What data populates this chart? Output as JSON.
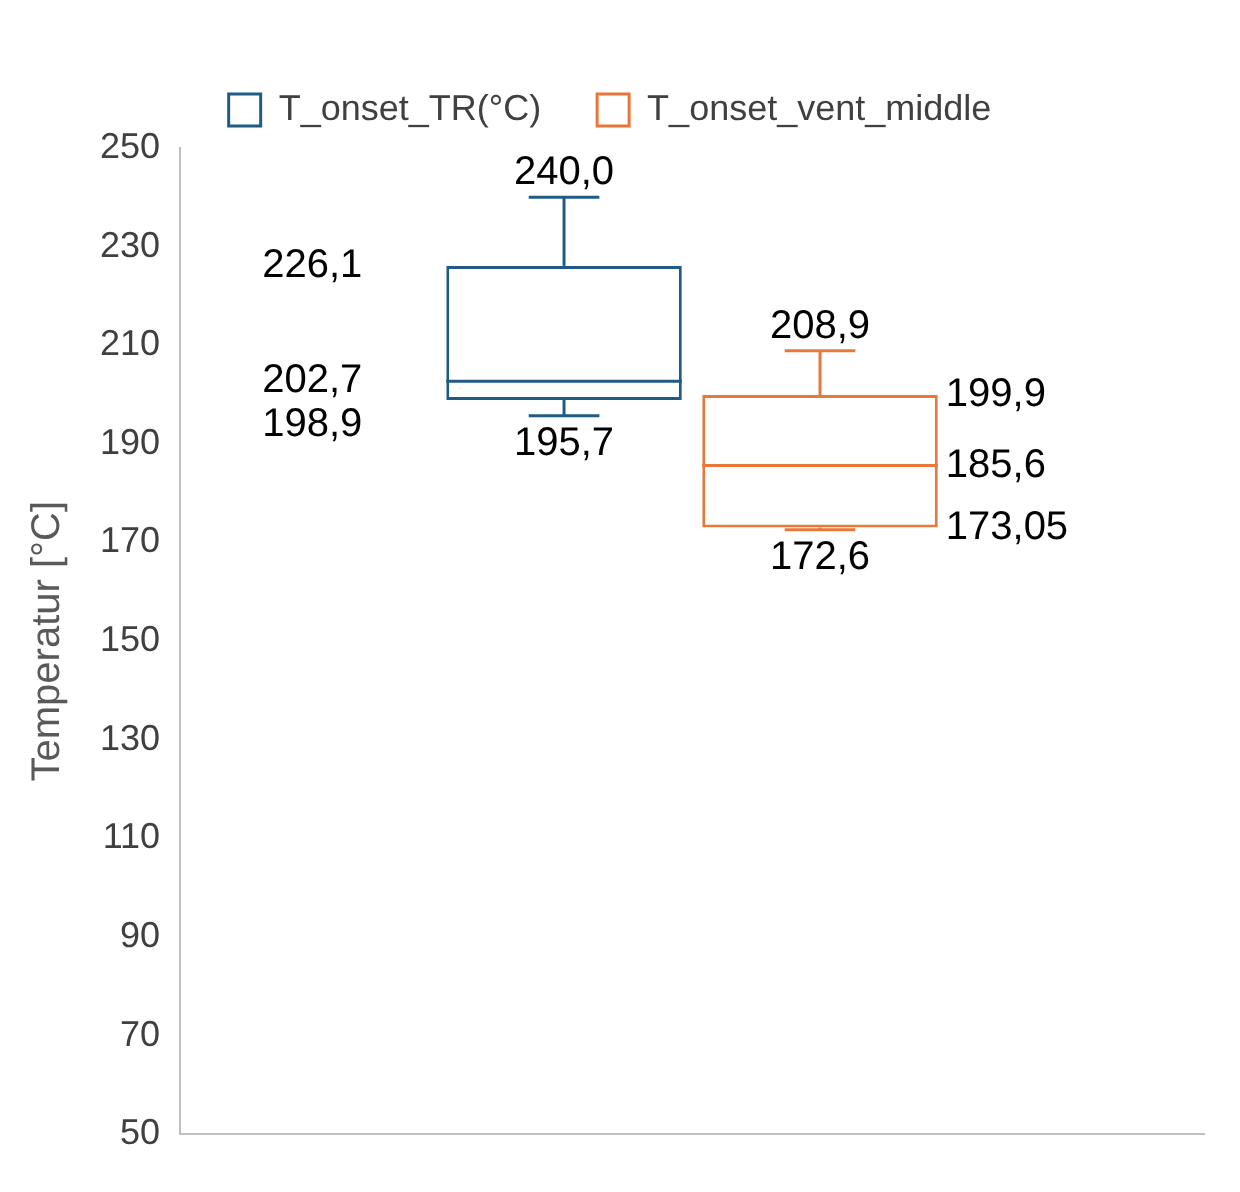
{
  "chart_data": {
    "type": "box",
    "ylabel": "Temperatur [°C]",
    "categories": [
      null
    ],
    "series": [
      {
        "name": "T_onset_TR(°C)",
        "color": "#1f5b84",
        "boxes": [
          {
            "low": 195.7,
            "q1": 198.9,
            "median": 202.7,
            "q3": 226.1,
            "high": 240.0
          }
        ]
      },
      {
        "name": "T_onset_vent_middle",
        "color": "#e8773a",
        "boxes": [
          {
            "low": 172.6,
            "q1": 173.05,
            "median": 185.6,
            "q3": 199.9,
            "high": 208.9
          }
        ]
      }
    ],
    "annotations": [
      "195,7",
      "198,9",
      "202,7",
      "226,1",
      "240,0",
      "172,6",
      "173,05",
      "185,6",
      "199,9",
      "208,9"
    ],
    "ylim": [
      50,
      250
    ],
    "yticks": [
      50,
      70,
      90,
      110,
      130,
      150,
      170,
      190,
      210,
      230,
      250
    ],
    "grid": false,
    "legend": "top",
    "tick_labels": "y"
  }
}
